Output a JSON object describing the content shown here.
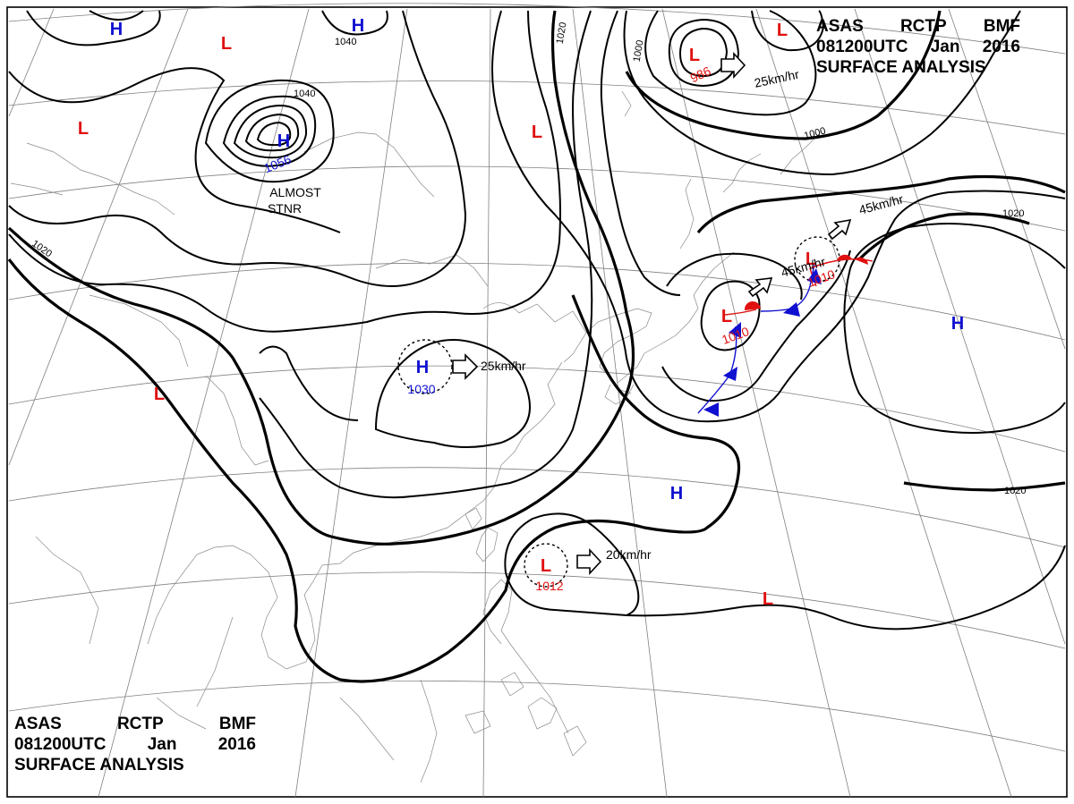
{
  "header_top": {
    "line1": [
      "ASAS",
      "RCTP",
      "BMF"
    ],
    "line2": [
      "081200UTC",
      "Jan",
      "2016"
    ],
    "line3": "SURFACE ANALYSIS"
  },
  "header_bottom": {
    "line1": [
      "ASAS",
      "RCTP",
      "BMF"
    ],
    "line2": [
      "081200UTC",
      "Jan",
      "2016"
    ],
    "line3": "SURFACE ANALYSIS"
  },
  "pressure_centers": [
    {
      "id": "h-nw-top",
      "type": "H",
      "label": "H",
      "value": ""
    },
    {
      "id": "h-top-center",
      "type": "H",
      "label": "H",
      "value": ""
    },
    {
      "id": "h-siberia",
      "type": "H",
      "label": "H",
      "value": "1056"
    },
    {
      "id": "h-china",
      "type": "H",
      "label": "H",
      "value": "1030"
    },
    {
      "id": "h-pacific-east",
      "type": "H",
      "label": "H",
      "value": ""
    },
    {
      "id": "h-pacific-central",
      "type": "H",
      "label": "H",
      "value": ""
    },
    {
      "id": "l-top-left",
      "type": "L",
      "label": "L",
      "value": ""
    },
    {
      "id": "l-west",
      "type": "L",
      "label": "L",
      "value": ""
    },
    {
      "id": "l-tibet",
      "type": "L",
      "label": "L",
      "value": ""
    },
    {
      "id": "l-north-center",
      "type": "L",
      "label": "L",
      "value": ""
    },
    {
      "id": "l-okhotsk",
      "type": "L",
      "label": "L",
      "value": "986"
    },
    {
      "id": "l-top-right",
      "type": "L",
      "label": "L",
      "value": ""
    },
    {
      "id": "l-japan-west",
      "type": "L",
      "label": "L",
      "value": "1010"
    },
    {
      "id": "l-japan-east",
      "type": "L",
      "label": "L",
      "value": "1010"
    },
    {
      "id": "l-luzon-strait",
      "type": "L",
      "label": "L",
      "value": "1012"
    },
    {
      "id": "l-pacific-south",
      "type": "L",
      "label": "L",
      "value": ""
    }
  ],
  "movements": [
    {
      "id": "move-okhotsk",
      "speed": "25km/hr"
    },
    {
      "id": "move-china-high",
      "speed": "25km/hr"
    },
    {
      "id": "move-japan-west",
      "speed": "45km/hr"
    },
    {
      "id": "move-japan-east",
      "speed": "45km/hr"
    },
    {
      "id": "move-luzon-low",
      "speed": "20km/hr"
    }
  ],
  "annotations": {
    "almost_stnr_line1": "ALMOST",
    "almost_stnr_line2": "STNR"
  },
  "isobar_labels": [
    {
      "id": "iso-1040-a",
      "text": "1040"
    },
    {
      "id": "iso-1040-b",
      "text": "1040"
    },
    {
      "id": "iso-1020-top",
      "text": "1020"
    },
    {
      "id": "iso-1000-top",
      "text": "1000"
    },
    {
      "id": "iso-1000-right",
      "text": "1000"
    },
    {
      "id": "iso-1020-west",
      "text": "1020"
    },
    {
      "id": "iso-1020-east-top",
      "text": "1020"
    },
    {
      "id": "iso-1020-east-bottom",
      "text": "1020"
    }
  ],
  "colors": {
    "high": "#1010d0",
    "low": "#e01010",
    "isobar": "#000000",
    "grid": "#808080",
    "coast": "#8a8a8a"
  }
}
